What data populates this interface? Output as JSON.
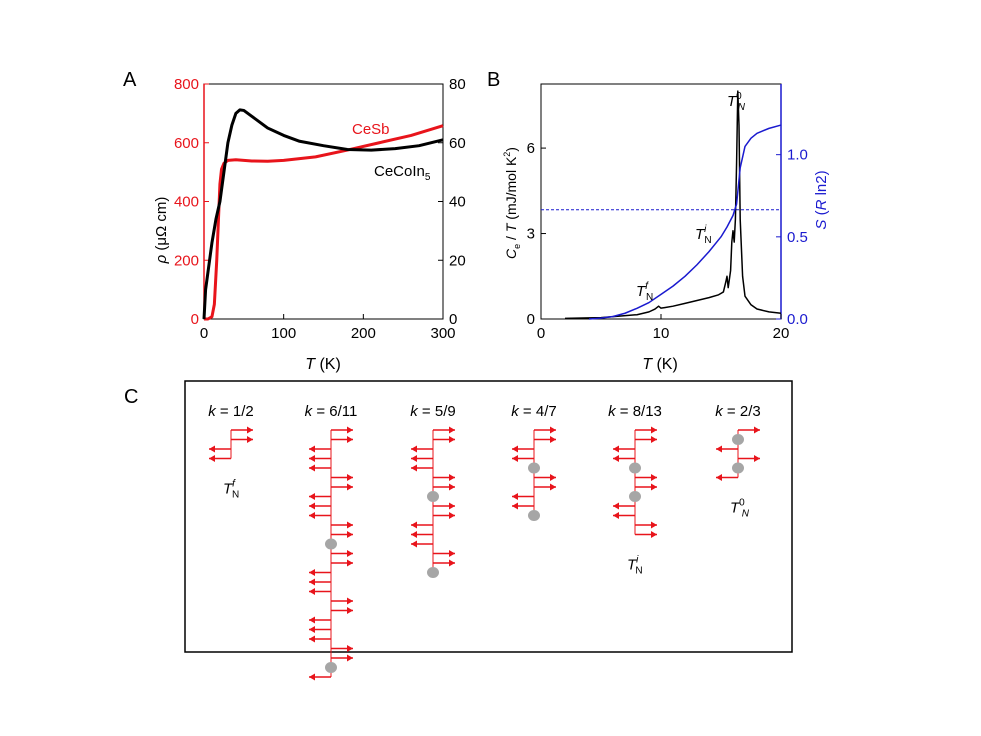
{
  "colors": {
    "red": "#e8141b",
    "blue": "#1a1acf",
    "black": "#000000",
    "gray": "#a6a6a6"
  },
  "chart_data": [
    {
      "type": "line",
      "panel_label": "A",
      "xlabel_italic": "T",
      "xlabel_rest": " (K)",
      "ylabel_left_italic": "ρ",
      "ylabel_left_rest": " (μΩ cm)",
      "xlim": [
        0,
        300
      ],
      "ylim_left": [
        0,
        800
      ],
      "ylim_right": [
        0,
        80
      ],
      "x_ticks": [
        0,
        100,
        200,
        300
      ],
      "y_ticks_left": [
        0,
        200,
        400,
        600,
        800
      ],
      "y_ticks_right": [
        0,
        20,
        40,
        60,
        80
      ],
      "series": [
        {
          "name": "CeSb",
          "axis": "left",
          "color": "#e8141b",
          "x": [
            0,
            5,
            10,
            13,
            16,
            18,
            20,
            22,
            25,
            30,
            40,
            60,
            80,
            100,
            140,
            180,
            220,
            260,
            300
          ],
          "y": [
            0,
            0,
            8,
            50,
            200,
            330,
            460,
            510,
            530,
            540,
            542,
            538,
            537,
            540,
            552,
            575,
            600,
            625,
            658
          ]
        },
        {
          "name": "CeCoIn",
          "name_sub": "5",
          "axis": "right",
          "color": "#000000",
          "x": [
            0,
            2,
            5,
            10,
            15,
            20,
            25,
            30,
            35,
            40,
            45,
            50,
            60,
            70,
            80,
            100,
            120,
            150,
            180,
            210,
            240,
            270,
            300
          ],
          "y": [
            0,
            10,
            16,
            26,
            34,
            40,
            50,
            60,
            66,
            70,
            71.2,
            71,
            69,
            67,
            65,
            62.5,
            60.5,
            59,
            57.7,
            57.5,
            58,
            59,
            61
          ]
        }
      ]
    },
    {
      "type": "line",
      "panel_label": "B",
      "xlabel_italic": "T",
      "xlabel_rest": " (K)",
      "ylabel_left": "C_e/T (mJ/mol K^2)",
      "ylabel_right": "S (R ln2)",
      "xlim": [
        0,
        20
      ],
      "ylim_left": [
        0,
        8.25
      ],
      "ylim_right": [
        0,
        1.43
      ],
      "x_ticks": [
        0,
        10,
        20
      ],
      "y_ticks_left": [
        0,
        3,
        6
      ],
      "y_ticks_right": [
        0.0,
        0.5,
        1.0
      ],
      "y_tick_labels_right": [
        "0.0",
        "0.5",
        "1.0"
      ],
      "dashed_line_right": 0.665,
      "annotations": [
        "T^f_N",
        "T^i_N",
        "T^0_N"
      ],
      "series": [
        {
          "name": "Ce/T",
          "axis": "left",
          "color": "#000000",
          "x": [
            2,
            5,
            8,
            9,
            9.5,
            9.8,
            10,
            10.3,
            11,
            12,
            13,
            14,
            14.8,
            15,
            15.2,
            15.4,
            15.5,
            15.6,
            15.8,
            15.9,
            16,
            16.1,
            16.2,
            16.3,
            16.4,
            16.5,
            16.6,
            16.8,
            17,
            17.5,
            18,
            19,
            20
          ],
          "y": [
            0.02,
            0.05,
            0.15,
            0.25,
            0.35,
            0.45,
            0.38,
            0.4,
            0.45,
            0.55,
            0.65,
            0.75,
            0.85,
            0.9,
            0.95,
            1.3,
            1.5,
            1.1,
            1.7,
            2.7,
            3.1,
            2.7,
            3.5,
            5.5,
            8.0,
            6.8,
            3.5,
            1.5,
            0.8,
            0.5,
            0.35,
            0.25,
            0.2
          ]
        },
        {
          "name": "S",
          "axis": "right",
          "color": "#1a1acf",
          "x": [
            4,
            5,
            6,
            7,
            8,
            9,
            10,
            11,
            12,
            13,
            14,
            15,
            15.5,
            16,
            16.3,
            16.6,
            17,
            17.5,
            18,
            19,
            20
          ],
          "y": [
            0,
            0.005,
            0.015,
            0.035,
            0.065,
            0.1,
            0.15,
            0.2,
            0.26,
            0.33,
            0.41,
            0.5,
            0.56,
            0.63,
            0.7,
            0.92,
            1.05,
            1.1,
            1.13,
            1.16,
            1.18
          ]
        }
      ]
    }
  ],
  "panel_c": {
    "label": "C",
    "columns": [
      {
        "k_text": "k = 1/2",
        "seq": "uudd",
        "bottom_label": "T^f_N"
      },
      {
        "k_text": "k = 6/11",
        "seq": "uuddduuddduuo0uuddduuddduuo0d",
        "bottom_label": ""
      },
      {
        "k_text": "k = 5/9",
        "seq": "uuddduuo0uuddduuo0",
        "bottom_label": ""
      },
      {
        "k_text": "k = 4/7",
        "seq": "uuddo0uuddo0",
        "bottom_label": ""
      },
      {
        "k_text": "k = 8/13",
        "seq": "uuddo0uuo0dduu",
        "bottom_label": "T^i_N"
      },
      {
        "k_text": "k = 2/3",
        "seq": "uo0duo0d",
        "bottom_label": "T^0_N"
      }
    ]
  },
  "text": {
    "a": "A",
    "b": "B",
    "c": "C",
    "cesb": "CeSb",
    "cecoin": "CeCoIn",
    "cecoin_sub": "5",
    "T": "T",
    "f": "f",
    "i": "i",
    "zero": "0",
    "N": "N",
    "k_italic": "k",
    "Ce_C": "C",
    "Ce_e": "e",
    "Ce_rest": " / ",
    "Ce_T": "T",
    "Ce_units": " (mJ/mol K",
    "Ce_sq": "2",
    "Ce_close": ")",
    "S_S": "S",
    "S_open": " (",
    "S_R": "R",
    "S_rest": " ln2)"
  }
}
